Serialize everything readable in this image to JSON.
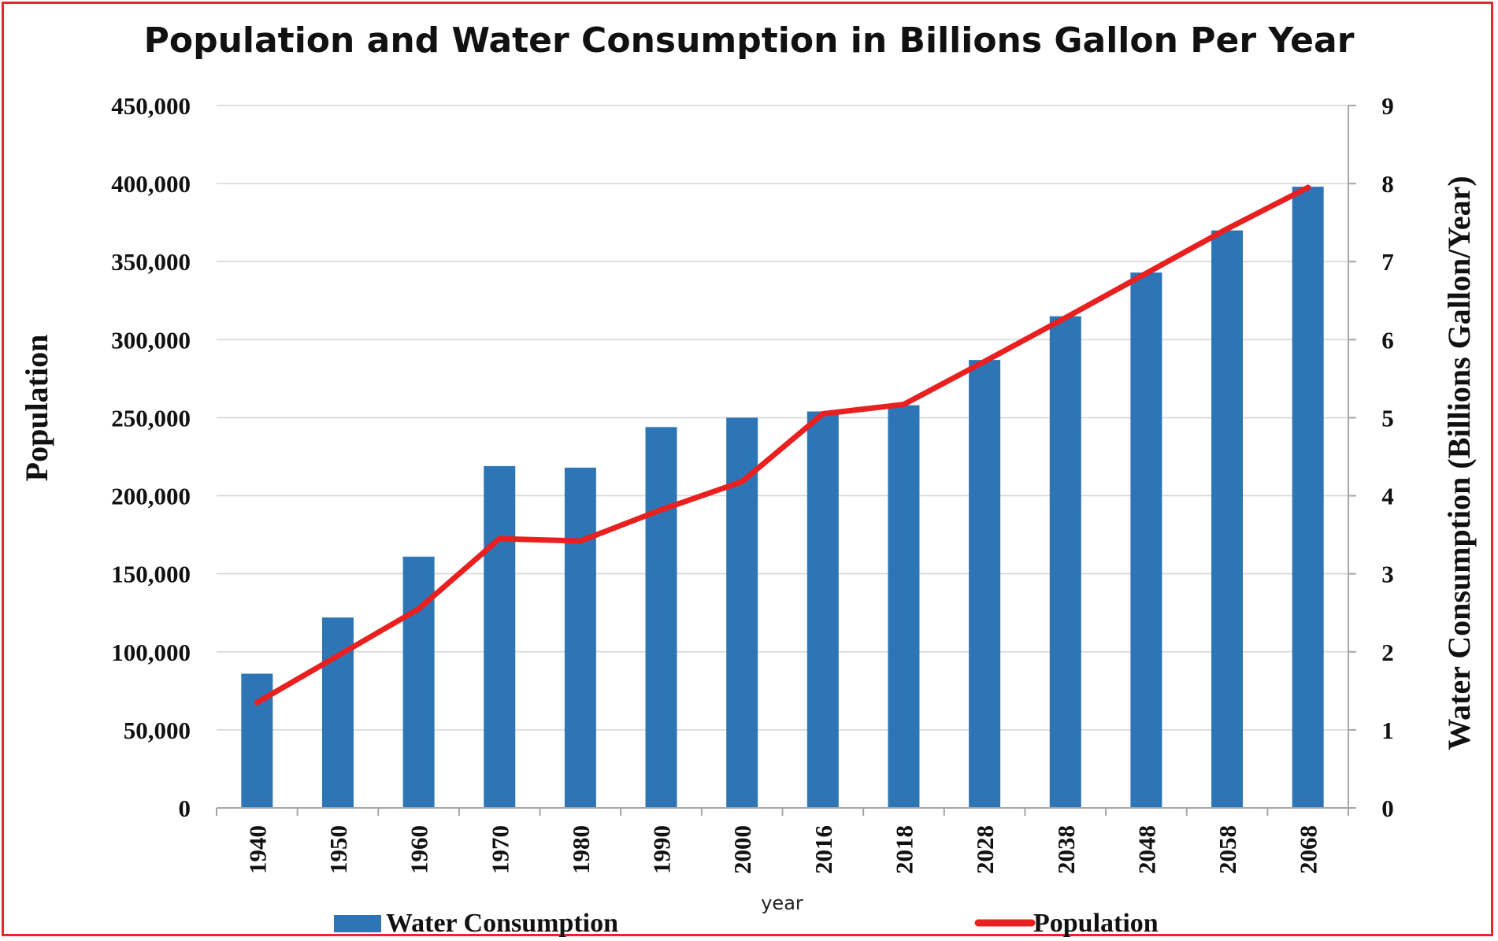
{
  "chart_data": {
    "type": "bar",
    "title": "Population and Water Consumption in Billions Gallon Per Year",
    "xlabel": "year",
    "ylabel": "Population",
    "ylabel_right": "Water Consumption (Billions Gallon/Year)",
    "categories": [
      "1940",
      "1950",
      "1960",
      "1970",
      "1980",
      "1990",
      "2000",
      "2016",
      "2018",
      "2028",
      "2038",
      "2048",
      "2058",
      "2068"
    ],
    "ylim": [
      0,
      450000
    ],
    "ylim_right": [
      0,
      9
    ],
    "yticks": [
      "0",
      "50,000",
      "100,000",
      "150,000",
      "200,000",
      "250,000",
      "300,000",
      "350,000",
      "400,000",
      "450,000"
    ],
    "yticks_right": [
      "0",
      "1",
      "2",
      "3",
      "4",
      "5",
      "6",
      "7",
      "8",
      "9"
    ],
    "grid": true,
    "legend_position": "bottom",
    "series": [
      {
        "name": "Water Consumption",
        "type": "bar",
        "axis": "left",
        "color": "#2e75b6",
        "values": [
          86000,
          122000,
          161000,
          219000,
          218000,
          244000,
          250000,
          254000,
          258000,
          287000,
          315000,
          343000,
          370000,
          398000
        ]
      },
      {
        "name": "Population",
        "type": "line",
        "axis": "right",
        "color": "#e8201f",
        "values": [
          1.35,
          1.95,
          2.55,
          3.45,
          3.42,
          3.82,
          4.18,
          5.05,
          5.17,
          5.72,
          6.28,
          6.85,
          7.42,
          7.95
        ]
      }
    ]
  }
}
